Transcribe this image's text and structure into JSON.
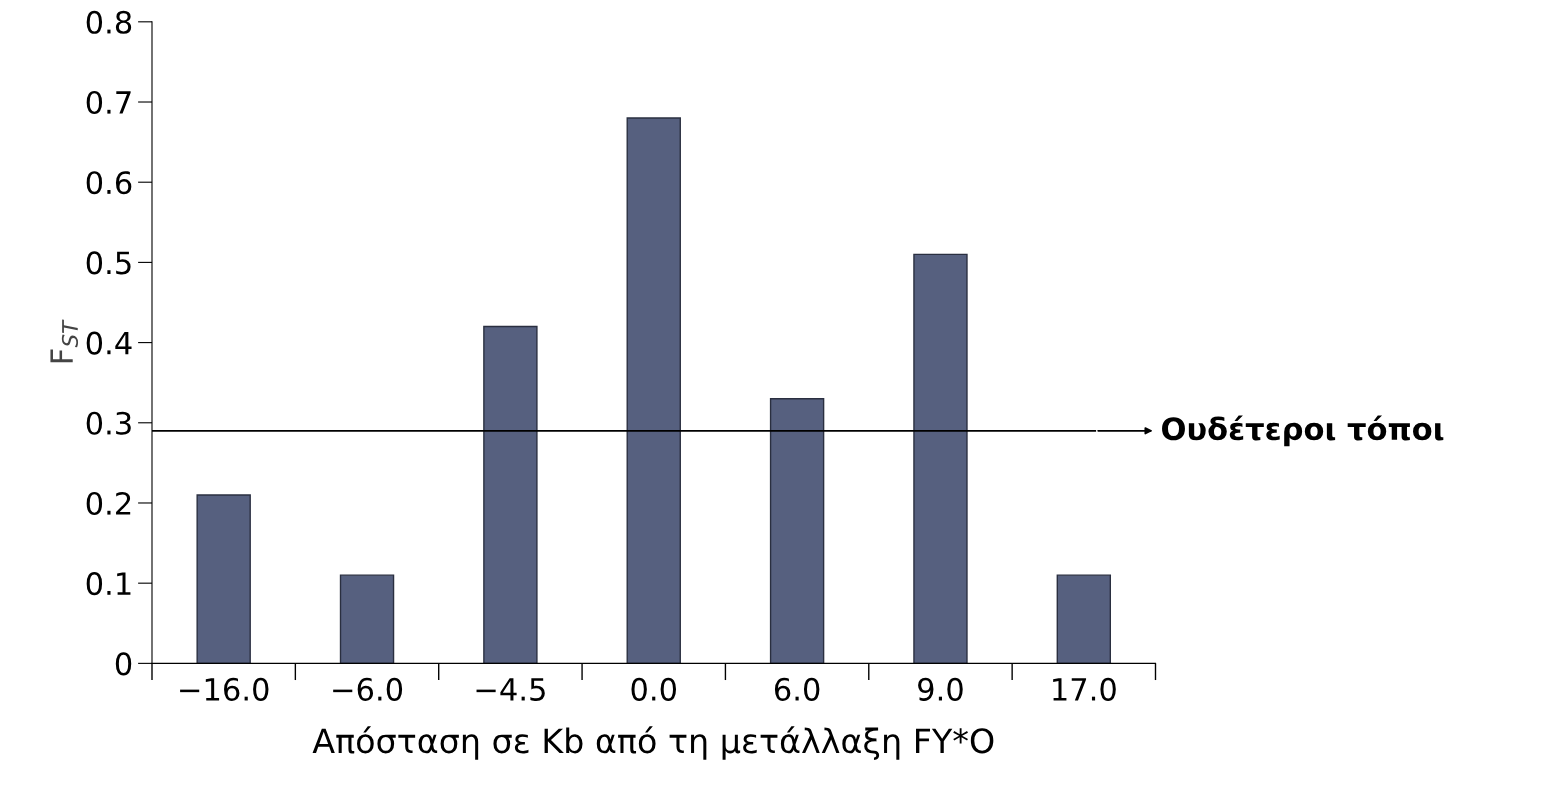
{
  "chart_data": {
    "type": "bar",
    "categories": [
      "−16.0",
      "−6.0",
      "−4.5",
      "0.0",
      "6.0",
      "9.0",
      "17.0"
    ],
    "values": [
      0.21,
      0.11,
      0.42,
      0.68,
      0.33,
      0.51,
      0.11
    ],
    "color": "#56607f",
    "xlabel": "Απόσταση σε Kb από τη μετάλλαξη FY*O",
    "ylabel": "F$_{ST}$",
    "ylim": [
      0,
      0.8
    ],
    "yticks": [
      0,
      0.1,
      0.2,
      0.3,
      0.4,
      0.5,
      0.6,
      0.7,
      0.8
    ],
    "ref_lines": [
      {
        "axis": "y",
        "value": 0.29,
        "label": "Ουδέτεροι τόποι",
        "color": "#000000"
      }
    ],
    "grid": false,
    "legend": false
  }
}
